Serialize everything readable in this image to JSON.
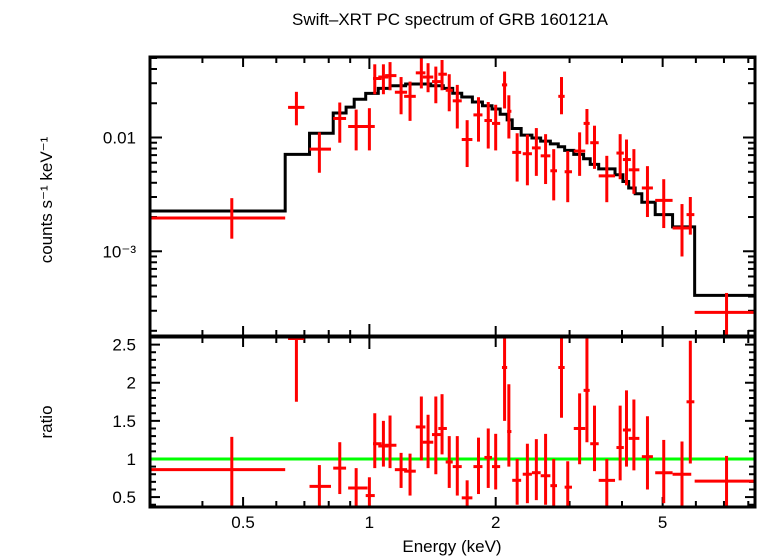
{
  "chart_data": [
    {
      "type": "scatter",
      "panel": "spectrum",
      "title": "Swift–XRT PC spectrum of GRB 160121A",
      "xlabel": "Energy (keV)",
      "ylabel": "counts s⁻¹ keV⁻¹",
      "xscale": "log",
      "yscale": "log",
      "xlim": [
        0.3,
        8.3
      ],
      "ylim": [
        0.00018,
        0.051
      ],
      "ytick_labels": [
        {
          "value": 0.01,
          "label": "0.01"
        },
        {
          "value": 0.001,
          "label": "10⁻³"
        }
      ],
      "data_color": "#ff0000",
      "model_color": "#000000",
      "data": [
        {
          "e": 0.47,
          "elo": 0.3,
          "ehi": 0.63,
          "y": 0.00196,
          "ylo": 0.00129,
          "yhi": 0.00293
        },
        {
          "e": 0.67,
          "elo": 0.64,
          "ehi": 0.7,
          "y": 0.0184,
          "ylo": 0.0128,
          "yhi": 0.0252
        },
        {
          "e": 0.76,
          "elo": 0.72,
          "ehi": 0.81,
          "y": 0.0079,
          "ylo": 0.0049,
          "yhi": 0.0111
        },
        {
          "e": 0.85,
          "elo": 0.82,
          "ehi": 0.88,
          "y": 0.0147,
          "ylo": 0.009,
          "yhi": 0.0203
        },
        {
          "e": 0.93,
          "elo": 0.89,
          "ehi": 0.99,
          "y": 0.0125,
          "ylo": 0.0077,
          "yhi": 0.0176
        },
        {
          "e": 1.0,
          "elo": 0.98,
          "ehi": 1.03,
          "y": 0.0125,
          "ylo": 0.0077,
          "yhi": 0.0181
        },
        {
          "e": 1.03,
          "elo": 1.02,
          "ehi": 1.07,
          "y": 0.033,
          "ylo": 0.024,
          "yhi": 0.044
        },
        {
          "e": 1.08,
          "elo": 1.05,
          "ehi": 1.11,
          "y": 0.034,
          "ylo": 0.024,
          "yhi": 0.044
        },
        {
          "e": 1.12,
          "elo": 1.09,
          "ehi": 1.16,
          "y": 0.035,
          "ylo": 0.026,
          "yhi": 0.046
        },
        {
          "e": 1.19,
          "elo": 1.15,
          "ehi": 1.23,
          "y": 0.025,
          "ylo": 0.016,
          "yhi": 0.034
        },
        {
          "e": 1.25,
          "elo": 1.21,
          "ehi": 1.29,
          "y": 0.023,
          "ylo": 0.014,
          "yhi": 0.031
        },
        {
          "e": 1.33,
          "elo": 1.29,
          "ehi": 1.36,
          "y": 0.037,
          "ylo": 0.027,
          "yhi": 0.052
        },
        {
          "e": 1.38,
          "elo": 1.34,
          "ehi": 1.42,
          "y": 0.034,
          "ylo": 0.025,
          "yhi": 0.045
        },
        {
          "e": 1.44,
          "elo": 1.41,
          "ehi": 1.48,
          "y": 0.031,
          "ylo": 0.02,
          "yhi": 0.042
        },
        {
          "e": 1.49,
          "elo": 1.46,
          "ehi": 1.53,
          "y": 0.036,
          "ylo": 0.026,
          "yhi": 0.048
        },
        {
          "e": 1.55,
          "elo": 1.52,
          "ehi": 1.58,
          "y": 0.026,
          "ylo": 0.017,
          "yhi": 0.036
        },
        {
          "e": 1.62,
          "elo": 1.58,
          "ehi": 1.66,
          "y": 0.021,
          "ylo": 0.012,
          "yhi": 0.029
        },
        {
          "e": 1.71,
          "elo": 1.66,
          "ehi": 1.76,
          "y": 0.0096,
          "ylo": 0.0055,
          "yhi": 0.0142
        },
        {
          "e": 1.82,
          "elo": 1.77,
          "ehi": 1.86,
          "y": 0.0158,
          "ylo": 0.0092,
          "yhi": 0.0226
        },
        {
          "e": 1.92,
          "elo": 1.88,
          "ehi": 1.96,
          "y": 0.0141,
          "ylo": 0.008,
          "yhi": 0.0205
        },
        {
          "e": 2.0,
          "elo": 1.96,
          "ehi": 2.05,
          "y": 0.0133,
          "ylo": 0.0077,
          "yhi": 0.0194
        },
        {
          "e": 2.1,
          "elo": 2.07,
          "ehi": 2.13,
          "y": 0.029,
          "ylo": 0.018,
          "yhi": 0.038
        },
        {
          "e": 2.15,
          "elo": 2.13,
          "ehi": 2.18,
          "y": 0.017,
          "ylo": 0.0098,
          "yhi": 0.0235
        },
        {
          "e": 2.25,
          "elo": 2.19,
          "ehi": 2.3,
          "y": 0.0074,
          "ylo": 0.0041,
          "yhi": 0.0109
        },
        {
          "e": 2.38,
          "elo": 2.32,
          "ehi": 2.44,
          "y": 0.0072,
          "ylo": 0.0038,
          "yhi": 0.0106
        },
        {
          "e": 2.5,
          "elo": 2.44,
          "ehi": 2.56,
          "y": 0.0081,
          "ylo": 0.0046,
          "yhi": 0.0121
        },
        {
          "e": 2.63,
          "elo": 2.56,
          "ehi": 2.7,
          "y": 0.0069,
          "ylo": 0.0039,
          "yhi": 0.0107
        },
        {
          "e": 2.75,
          "elo": 2.7,
          "ehi": 2.8,
          "y": 0.0051,
          "ylo": 0.0028,
          "yhi": 0.0079
        },
        {
          "e": 2.87,
          "elo": 2.82,
          "ehi": 2.92,
          "y": 0.023,
          "ylo": 0.016,
          "yhi": 0.034
        },
        {
          "e": 2.97,
          "elo": 2.92,
          "ehi": 3.04,
          "y": 0.005,
          "ylo": 0.0027,
          "yhi": 0.0076
        },
        {
          "e": 3.17,
          "elo": 3.07,
          "ehi": 3.27,
          "y": 0.0076,
          "ylo": 0.0046,
          "yhi": 0.0111
        },
        {
          "e": 3.3,
          "elo": 3.24,
          "ehi": 3.35,
          "y": 0.0133,
          "ylo": 0.0087,
          "yhi": 0.0178
        },
        {
          "e": 3.44,
          "elo": 3.36,
          "ehi": 3.52,
          "y": 0.009,
          "ylo": 0.0053,
          "yhi": 0.0127
        },
        {
          "e": 3.68,
          "elo": 3.52,
          "ehi": 3.85,
          "y": 0.0046,
          "ylo": 0.0027,
          "yhi": 0.0069
        },
        {
          "e": 3.96,
          "elo": 3.88,
          "ehi": 4.04,
          "y": 0.0073,
          "ylo": 0.0043,
          "yhi": 0.0107
        },
        {
          "e": 4.1,
          "elo": 4.02,
          "ehi": 4.2,
          "y": 0.0064,
          "ylo": 0.0038,
          "yhi": 0.0096
        },
        {
          "e": 4.27,
          "elo": 4.15,
          "ehi": 4.4,
          "y": 0.0052,
          "ylo": 0.0032,
          "yhi": 0.0079
        },
        {
          "e": 4.6,
          "elo": 4.46,
          "ehi": 4.74,
          "y": 0.0036,
          "ylo": 0.002,
          "yhi": 0.0056
        },
        {
          "e": 5.03,
          "elo": 4.8,
          "ehi": 5.28,
          "y": 0.0028,
          "ylo": 0.0016,
          "yhi": 0.0043
        },
        {
          "e": 5.56,
          "elo": 5.28,
          "ehi": 5.85,
          "y": 0.0016,
          "ylo": 0.0009,
          "yhi": 0.0026
        },
        {
          "e": 5.82,
          "elo": 5.7,
          "ehi": 5.95,
          "y": 0.0021,
          "ylo": 0.0014,
          "yhi": 0.003
        },
        {
          "e": 7.1,
          "elo": 5.96,
          "ehi": 8.3,
          "y": 0.00029,
          "ylo": 0.00015,
          "yhi": 0.00043
        }
      ],
      "model": [
        {
          "elo": 0.3,
          "ehi": 0.63,
          "y": 0.00226
        },
        {
          "elo": 0.63,
          "ehi": 0.72,
          "y": 0.0071
        },
        {
          "elo": 0.72,
          "ehi": 0.82,
          "y": 0.0109
        },
        {
          "elo": 0.82,
          "ehi": 0.88,
          "y": 0.0164
        },
        {
          "elo": 0.88,
          "ehi": 0.92,
          "y": 0.0185
        },
        {
          "elo": 0.92,
          "ehi": 0.98,
          "y": 0.0217
        },
        {
          "elo": 0.98,
          "ehi": 1.05,
          "y": 0.0244
        },
        {
          "elo": 1.05,
          "ehi": 1.12,
          "y": 0.027
        },
        {
          "elo": 1.12,
          "ehi": 1.22,
          "y": 0.0285
        },
        {
          "elo": 1.22,
          "ehi": 1.4,
          "y": 0.0295
        },
        {
          "elo": 1.4,
          "ehi": 1.5,
          "y": 0.0285
        },
        {
          "elo": 1.5,
          "ehi": 1.58,
          "y": 0.027
        },
        {
          "elo": 1.58,
          "ehi": 1.66,
          "y": 0.0245
        },
        {
          "elo": 1.66,
          "ehi": 1.76,
          "y": 0.0227
        },
        {
          "elo": 1.76,
          "ehi": 1.86,
          "y": 0.0205
        },
        {
          "elo": 1.86,
          "ehi": 1.96,
          "y": 0.019
        },
        {
          "elo": 1.96,
          "ehi": 2.05,
          "y": 0.0178
        },
        {
          "elo": 2.05,
          "ehi": 2.13,
          "y": 0.016
        },
        {
          "elo": 2.13,
          "ehi": 2.19,
          "y": 0.0143
        },
        {
          "elo": 2.19,
          "ehi": 2.3,
          "y": 0.012
        },
        {
          "elo": 2.3,
          "ehi": 2.44,
          "y": 0.0105
        },
        {
          "elo": 2.44,
          "ehi": 2.56,
          "y": 0.0099
        },
        {
          "elo": 2.56,
          "ehi": 2.7,
          "y": 0.0093
        },
        {
          "elo": 2.7,
          "ehi": 2.82,
          "y": 0.0088
        },
        {
          "elo": 2.82,
          "ehi": 2.92,
          "y": 0.0083
        },
        {
          "elo": 2.92,
          "ehi": 3.07,
          "y": 0.0077
        },
        {
          "elo": 3.07,
          "ehi": 3.24,
          "y": 0.0071
        },
        {
          "elo": 3.24,
          "ehi": 3.36,
          "y": 0.0065
        },
        {
          "elo": 3.36,
          "ehi": 3.52,
          "y": 0.0058
        },
        {
          "elo": 3.52,
          "ehi": 3.85,
          "y": 0.0053
        },
        {
          "elo": 3.85,
          "ehi": 4.02,
          "y": 0.0047
        },
        {
          "elo": 4.02,
          "ehi": 4.15,
          "y": 0.0041
        },
        {
          "elo": 4.15,
          "ehi": 4.3,
          "y": 0.0036
        },
        {
          "elo": 4.3,
          "ehi": 4.46,
          "y": 0.0032
        },
        {
          "elo": 4.46,
          "ehi": 4.8,
          "y": 0.0027
        },
        {
          "elo": 4.8,
          "ehi": 5.28,
          "y": 0.0021
        },
        {
          "elo": 5.28,
          "ehi": 5.96,
          "y": 0.00164
        },
        {
          "elo": 5.96,
          "ehi": 8.3,
          "y": 0.00041
        }
      ]
    },
    {
      "type": "scatter",
      "panel": "ratio",
      "xlabel": "Energy (keV)",
      "ylabel": "ratio",
      "xscale": "log",
      "xlim": [
        0.3,
        8.3
      ],
      "ylim": [
        0.37,
        2.6
      ],
      "ytick_labels": [
        {
          "value": 2.5,
          "label": "2.5"
        },
        {
          "value": 2,
          "label": "2"
        },
        {
          "value": 1.5,
          "label": "1.5"
        },
        {
          "value": 1,
          "label": "1"
        },
        {
          "value": 0.5,
          "label": "0.5"
        }
      ],
      "xtick_labels": [
        {
          "value": 0.5,
          "label": "0.5"
        },
        {
          "value": 1,
          "label": "1"
        },
        {
          "value": 2,
          "label": "2"
        },
        {
          "value": 5,
          "label": "5"
        }
      ],
      "reference_line": {
        "y": 1,
        "color": "#00ff00"
      },
      "data_color": "#ff0000",
      "data": [
        {
          "e": 0.47,
          "elo": 0.3,
          "ehi": 0.63,
          "y": 0.86,
          "ylo": 0.37,
          "yhi": 1.29
        },
        {
          "e": 0.67,
          "elo": 0.64,
          "ehi": 0.7,
          "y": 2.58,
          "ylo": 1.75,
          "yhi": 2.6
        },
        {
          "e": 0.76,
          "elo": 0.72,
          "ehi": 0.81,
          "y": 0.64,
          "ylo": 0.37,
          "yhi": 0.92
        },
        {
          "e": 0.85,
          "elo": 0.82,
          "ehi": 0.88,
          "y": 0.88,
          "ylo": 0.54,
          "yhi": 1.22
        },
        {
          "e": 0.93,
          "elo": 0.89,
          "ehi": 0.99,
          "y": 0.62,
          "ylo": 0.37,
          "yhi": 0.88
        },
        {
          "e": 1.0,
          "elo": 0.98,
          "ehi": 1.03,
          "y": 0.52,
          "ylo": 0.37,
          "yhi": 0.76
        },
        {
          "e": 1.03,
          "elo": 1.02,
          "ehi": 1.07,
          "y": 1.2,
          "ylo": 0.88,
          "yhi": 1.6
        },
        {
          "e": 1.08,
          "elo": 1.05,
          "ehi": 1.11,
          "y": 1.17,
          "ylo": 0.9,
          "yhi": 1.5
        },
        {
          "e": 1.12,
          "elo": 1.09,
          "ehi": 1.16,
          "y": 1.18,
          "ylo": 0.88,
          "yhi": 1.57
        },
        {
          "e": 1.19,
          "elo": 1.15,
          "ehi": 1.23,
          "y": 0.86,
          "ylo": 0.62,
          "yhi": 1.08
        },
        {
          "e": 1.25,
          "elo": 1.21,
          "ehi": 1.29,
          "y": 0.84,
          "ylo": 0.52,
          "yhi": 1.07
        },
        {
          "e": 1.33,
          "elo": 1.29,
          "ehi": 1.36,
          "y": 1.42,
          "ylo": 0.98,
          "yhi": 1.82
        },
        {
          "e": 1.38,
          "elo": 1.34,
          "ehi": 1.42,
          "y": 1.22,
          "ylo": 0.88,
          "yhi": 1.58
        },
        {
          "e": 1.44,
          "elo": 1.41,
          "ehi": 1.48,
          "y": 1.32,
          "ylo": 0.8,
          "yhi": 1.82
        },
        {
          "e": 1.49,
          "elo": 1.46,
          "ehi": 1.53,
          "y": 1.4,
          "ylo": 1.06,
          "yhi": 1.85
        },
        {
          "e": 1.55,
          "elo": 1.52,
          "ehi": 1.58,
          "y": 0.96,
          "ylo": 0.62,
          "yhi": 1.3
        },
        {
          "e": 1.62,
          "elo": 1.58,
          "ehi": 1.66,
          "y": 0.9,
          "ylo": 0.52,
          "yhi": 1.3
        },
        {
          "e": 1.71,
          "elo": 1.66,
          "ehi": 1.76,
          "y": 0.49,
          "ylo": 0.37,
          "yhi": 0.72
        },
        {
          "e": 1.82,
          "elo": 1.77,
          "ehi": 1.86,
          "y": 0.9,
          "ylo": 0.54,
          "yhi": 1.28
        },
        {
          "e": 1.92,
          "elo": 1.88,
          "ehi": 1.96,
          "y": 1.02,
          "ylo": 0.62,
          "yhi": 1.4
        },
        {
          "e": 2.0,
          "elo": 1.96,
          "ehi": 2.05,
          "y": 0.9,
          "ylo": 0.6,
          "yhi": 1.33
        },
        {
          "e": 2.1,
          "elo": 2.07,
          "ehi": 2.13,
          "y": 2.2,
          "ylo": 1.5,
          "yhi": 2.6
        },
        {
          "e": 2.15,
          "elo": 2.13,
          "ehi": 2.18,
          "y": 1.36,
          "ylo": 0.9,
          "yhi": 1.98
        },
        {
          "e": 2.25,
          "elo": 2.19,
          "ehi": 2.3,
          "y": 0.72,
          "ylo": 0.4,
          "yhi": 1.0
        },
        {
          "e": 2.38,
          "elo": 2.32,
          "ehi": 2.44,
          "y": 0.8,
          "ylo": 0.42,
          "yhi": 1.2
        },
        {
          "e": 2.5,
          "elo": 2.44,
          "ehi": 2.56,
          "y": 0.82,
          "ylo": 0.46,
          "yhi": 1.26
        },
        {
          "e": 2.63,
          "elo": 2.56,
          "ehi": 2.7,
          "y": 0.78,
          "ylo": 0.4,
          "yhi": 1.33
        },
        {
          "e": 2.75,
          "elo": 2.7,
          "ehi": 2.8,
          "y": 0.65,
          "ylo": 0.37,
          "yhi": 1.0
        },
        {
          "e": 2.87,
          "elo": 2.82,
          "ehi": 2.92,
          "y": 2.2,
          "ylo": 1.54,
          "yhi": 2.6
        },
        {
          "e": 2.97,
          "elo": 2.92,
          "ehi": 3.04,
          "y": 0.63,
          "ylo": 0.37,
          "yhi": 0.97
        },
        {
          "e": 3.17,
          "elo": 3.07,
          "ehi": 3.27,
          "y": 1.4,
          "ylo": 0.93,
          "yhi": 1.86
        },
        {
          "e": 3.3,
          "elo": 3.24,
          "ehi": 3.35,
          "y": 1.9,
          "ylo": 1.22,
          "yhi": 2.6
        },
        {
          "e": 3.44,
          "elo": 3.36,
          "ehi": 3.52,
          "y": 1.2,
          "ylo": 0.84,
          "yhi": 1.7
        },
        {
          "e": 3.68,
          "elo": 3.52,
          "ehi": 3.85,
          "y": 0.72,
          "ylo": 0.37,
          "yhi": 1.0
        },
        {
          "e": 3.96,
          "elo": 3.88,
          "ehi": 4.04,
          "y": 1.15,
          "ylo": 0.72,
          "yhi": 1.7
        },
        {
          "e": 4.1,
          "elo": 4.02,
          "ehi": 4.2,
          "y": 1.38,
          "ylo": 0.9,
          "yhi": 1.9
        },
        {
          "e": 4.27,
          "elo": 4.15,
          "ehi": 4.4,
          "y": 1.27,
          "ylo": 0.85,
          "yhi": 1.78
        },
        {
          "e": 4.6,
          "elo": 4.46,
          "ehi": 4.74,
          "y": 1.03,
          "ylo": 0.6,
          "yhi": 1.56
        },
        {
          "e": 5.03,
          "elo": 4.8,
          "ehi": 5.28,
          "y": 0.82,
          "ylo": 0.42,
          "yhi": 1.25
        },
        {
          "e": 5.56,
          "elo": 5.28,
          "ehi": 5.85,
          "y": 0.8,
          "ylo": 0.37,
          "yhi": 1.23
        },
        {
          "e": 5.82,
          "elo": 5.7,
          "ehi": 5.95,
          "y": 1.75,
          "ylo": 0.94,
          "yhi": 2.55
        },
        {
          "e": 7.1,
          "elo": 5.96,
          "ehi": 8.3,
          "y": 0.71,
          "ylo": 0.37,
          "yhi": 1.04
        }
      ]
    }
  ]
}
